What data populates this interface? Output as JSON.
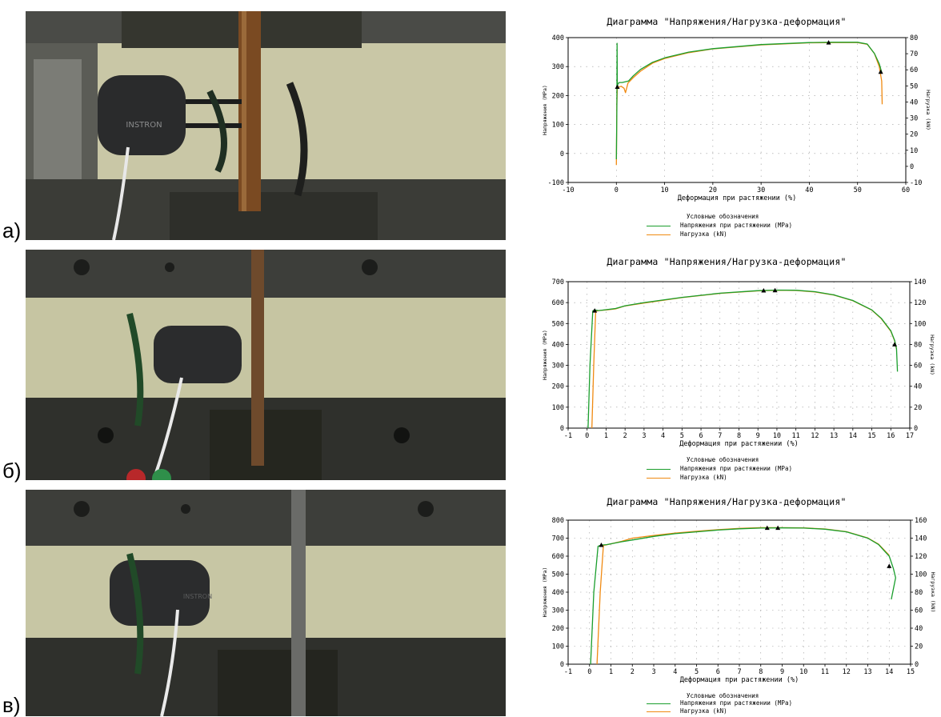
{
  "rows": [
    {
      "label": "а)"
    },
    {
      "label": "б)"
    },
    {
      "label": "в)"
    }
  ],
  "photo": {
    "brand": "INSTRON"
  },
  "colors": {
    "stress": "#1a9e2c",
    "load": "#f08a12",
    "marker": "#000000",
    "grid": "#9a9a9a"
  },
  "chart_data": [
    {
      "type": "line",
      "title": "Диаграмма \"Напряжения/Нагрузка-деформация\"",
      "xlabel": "Деформация при растяжении (%)",
      "ylabel": "Напряжения (MPa)",
      "y2label": "Нагрузка (kN)",
      "xlim": [
        -10,
        60
      ],
      "ylim": [
        -100,
        400
      ],
      "y2lim": [
        -10,
        80
      ],
      "xticks": [
        -10,
        0,
        10,
        20,
        30,
        40,
        50,
        60
      ],
      "yticks": [
        -100,
        0,
        100,
        200,
        300,
        400
      ],
      "y2ticks": [
        -10,
        0,
        10,
        20,
        30,
        40,
        50,
        60,
        70,
        80
      ],
      "grid": true,
      "series": [
        {
          "name": "Напряжения при растяжении (MPa)",
          "color": "#1a9e2c",
          "x": [
            0,
            0.1,
            0.15,
            0.2,
            0.25,
            0.3,
            0.6,
            1.2,
            2.0,
            2.5,
            3.5,
            5,
            7.5,
            10,
            15,
            20,
            30,
            40,
            45,
            50,
            52,
            53.5,
            54.5,
            55
          ],
          "y": [
            -20,
            150,
            380,
            230,
            235,
            240,
            245,
            245,
            248,
            250,
            268,
            290,
            315,
            330,
            350,
            362,
            376,
            383,
            384,
            384,
            378,
            345,
            310,
            280
          ]
        },
        {
          "name": "Нагрузка (kN)",
          "color": "#f08a12",
          "x": [
            0,
            0.1,
            0.2,
            0.3,
            1.0,
            1.6,
            1.9,
            2.4,
            3.5,
            5,
            7.5,
            10,
            15,
            20,
            30,
            40,
            45,
            50,
            52,
            53.5,
            54.5,
            55,
            55.1
          ],
          "y": [
            -40,
            170,
            225,
            228,
            232,
            225,
            210,
            243,
            262,
            284,
            312,
            328,
            348,
            361,
            375,
            382,
            383,
            383,
            377,
            345,
            300,
            250,
            170
          ]
        }
      ],
      "markers": [
        {
          "x": 0.2,
          "y": 230
        },
        {
          "x": 44,
          "y": 383
        },
        {
          "x": 54.8,
          "y": 282
        }
      ],
      "legend": {
        "title": "Условные обозначения",
        "placement": "bottom"
      }
    },
    {
      "type": "line",
      "title": "Диаграмма \"Напряжения/Нагрузка-деформация\"",
      "xlabel": "Деформация при растяжении (%)",
      "ylabel": "Напряжения (MPa)",
      "y2label": "Нагрузка (kN)",
      "xlim": [
        -1,
        17
      ],
      "ylim": [
        0,
        700
      ],
      "y2lim": [
        0,
        140
      ],
      "xticks": [
        -1,
        0,
        1,
        2,
        3,
        4,
        5,
        6,
        7,
        8,
        9,
        10,
        11,
        12,
        13,
        14,
        15,
        16,
        17
      ],
      "yticks": [
        0,
        100,
        200,
        300,
        400,
        500,
        600,
        700
      ],
      "y2ticks": [
        0,
        20,
        40,
        60,
        80,
        100,
        120,
        140
      ],
      "grid": true,
      "series": [
        {
          "name": "Напряжения при растяжении (MPa)",
          "color": "#1a9e2c",
          "x": [
            0.05,
            0.15,
            0.3,
            0.4,
            0.6,
            1,
            1.5,
            2,
            3,
            5,
            7,
            9,
            10,
            11,
            12,
            13,
            14,
            15,
            15.5,
            16,
            16.2,
            16.3,
            16.35
          ],
          "y": [
            0,
            300,
            560,
            565,
            562,
            566,
            572,
            585,
            600,
            625,
            645,
            657,
            660,
            659,
            652,
            637,
            610,
            565,
            525,
            465,
            420,
            380,
            270
          ]
        },
        {
          "name": "Нагрузка (kN)",
          "color": "#f08a12",
          "x": [
            0.25,
            0.35,
            0.45,
            0.6,
            1,
            1.5,
            2,
            3,
            5,
            7,
            9,
            10,
            11,
            12,
            13,
            14,
            15,
            15.5,
            16,
            16.2,
            16.3
          ],
          "y": [
            0,
            300,
            558,
            562,
            565,
            570,
            584,
            598,
            624,
            644,
            656,
            659,
            658,
            651,
            636,
            609,
            564,
            523,
            463,
            418,
            378
          ]
        }
      ],
      "markers": [
        {
          "x": 0.4,
          "y": 562
        },
        {
          "x": 9.3,
          "y": 658
        },
        {
          "x": 9.9,
          "y": 659
        },
        {
          "x": 16.2,
          "y": 400
        }
      ],
      "legend": {
        "title": "Условные обозначения",
        "placement": "bottom"
      }
    },
    {
      "type": "line",
      "title": "Диаграмма \"Напряжения/Нагрузка-деформация\"",
      "xlabel": "Деформация при растяжении (%)",
      "ylabel": "Напряжения (MPa)",
      "y2label": "Нагрузка (kN)",
      "xlim": [
        -1,
        15
      ],
      "ylim": [
        0,
        800
      ],
      "y2lim": [
        0,
        160
      ],
      "xticks": [
        -1,
        0,
        1,
        2,
        3,
        4,
        5,
        6,
        7,
        8,
        9,
        10,
        11,
        12,
        13,
        14,
        15
      ],
      "yticks": [
        0,
        100,
        200,
        300,
        400,
        500,
        600,
        700,
        800
      ],
      "y2ticks": [
        0,
        20,
        40,
        60,
        80,
        100,
        120,
        140,
        160
      ],
      "grid": true,
      "series": [
        {
          "name": "Напряжения при растяжении (MPa)",
          "color": "#1a9e2c",
          "x": [
            0.05,
            0.2,
            0.4,
            0.55,
            0.8,
            1.5,
            2,
            3,
            4,
            5,
            6,
            7,
            8,
            9,
            10,
            11,
            12,
            13,
            13.5,
            14,
            14.2,
            14.3,
            14.2,
            14.1
          ],
          "y": [
            0,
            400,
            655,
            662,
            664,
            680,
            690,
            710,
            725,
            735,
            745,
            752,
            756,
            757,
            756,
            750,
            735,
            700,
            665,
            600,
            530,
            480,
            420,
            360
          ]
        },
        {
          "name": "Нагрузка (kN)",
          "color": "#f08a12",
          "x": [
            0.35,
            0.5,
            0.65,
            0.8,
            1.5,
            2,
            3,
            4,
            5,
            6,
            7,
            8,
            9,
            10,
            11,
            12,
            13,
            13.5,
            14
          ],
          "y": [
            0,
            400,
            660,
            663,
            682,
            700,
            715,
            728,
            738,
            747,
            754,
            758,
            758,
            757,
            751,
            736,
            701,
            667,
            605
          ]
        }
      ],
      "markers": [
        {
          "x": 0.55,
          "y": 662
        },
        {
          "x": 8.3,
          "y": 757
        },
        {
          "x": 8.8,
          "y": 757
        },
        {
          "x": 14.0,
          "y": 545
        }
      ],
      "legend": {
        "title": "Условные обозначения",
        "placement": "bottom"
      }
    }
  ]
}
